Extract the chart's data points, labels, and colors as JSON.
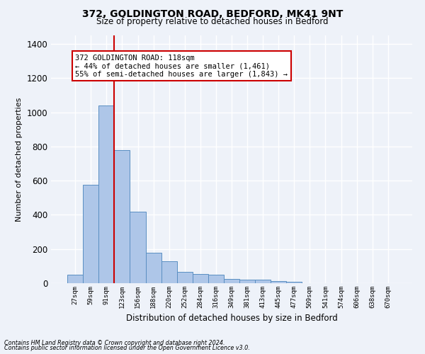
{
  "title_line1": "372, GOLDINGTON ROAD, BEDFORD, MK41 9NT",
  "title_line2": "Size of property relative to detached houses in Bedford",
  "xlabel": "Distribution of detached houses by size in Bedford",
  "ylabel": "Number of detached properties",
  "bar_color": "#aec6e8",
  "bar_edge_color": "#5a8fc2",
  "categories": [
    "27sqm",
    "59sqm",
    "91sqm",
    "123sqm",
    "156sqm",
    "188sqm",
    "220sqm",
    "252sqm",
    "284sqm",
    "316sqm",
    "349sqm",
    "381sqm",
    "413sqm",
    "445sqm",
    "477sqm",
    "509sqm",
    "541sqm",
    "574sqm",
    "606sqm",
    "638sqm",
    "670sqm"
  ],
  "values": [
    50,
    575,
    1040,
    780,
    420,
    180,
    130,
    65,
    55,
    50,
    25,
    22,
    20,
    12,
    8,
    0,
    0,
    0,
    0,
    0,
    0
  ],
  "ylim": [
    0,
    1450
  ],
  "yticks": [
    0,
    200,
    400,
    600,
    800,
    1000,
    1200,
    1400
  ],
  "vline_index": 2.5,
  "vline_color": "#cc0000",
  "annotation_text": "372 GOLDINGTON ROAD: 118sqm\n← 44% of detached houses are smaller (1,461)\n55% of semi-detached houses are larger (1,843) →",
  "annotation_box_color": "#ffffff",
  "annotation_box_edge": "#cc0000",
  "footnote1": "Contains HM Land Registry data © Crown copyright and database right 2024.",
  "footnote2": "Contains public sector information licensed under the Open Government Licence v3.0.",
  "bg_color": "#eef2f9",
  "plot_bg_color": "#eef2f9",
  "grid_color": "#ffffff"
}
